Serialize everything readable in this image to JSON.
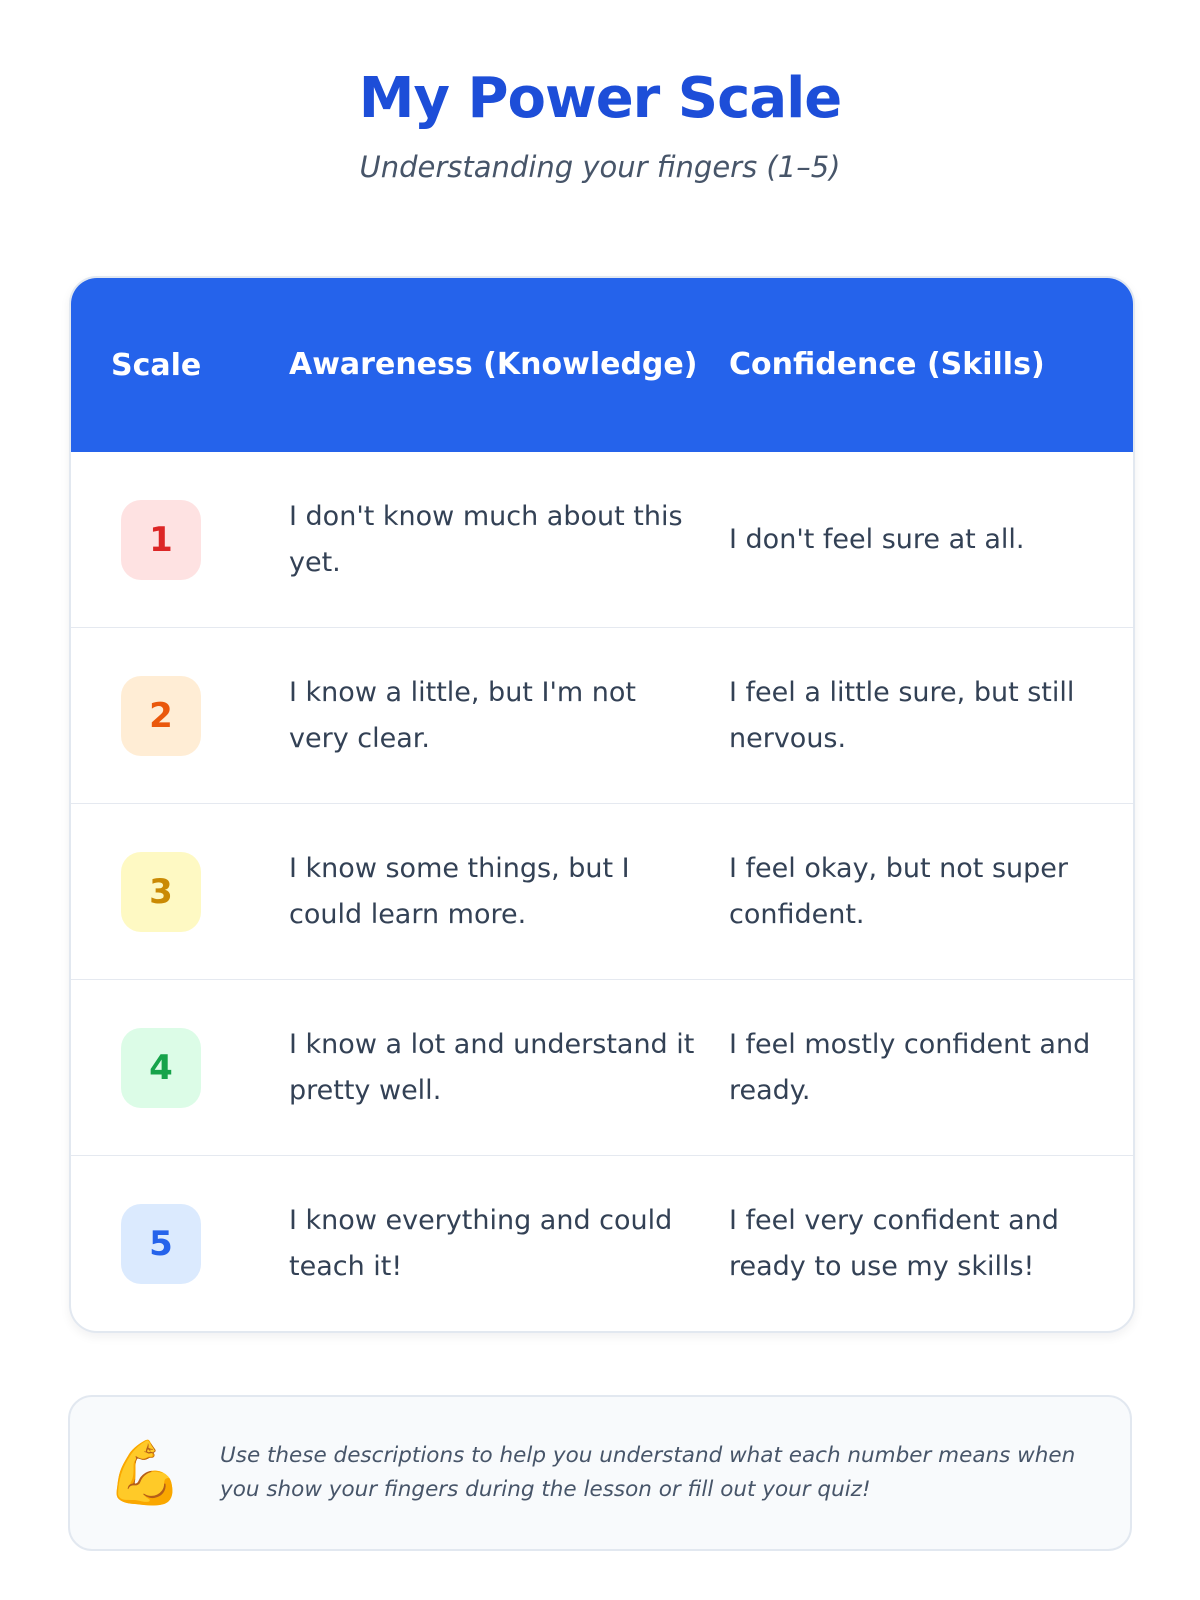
{
  "header": {
    "title": "My Power Scale",
    "subtitle": "Understanding your fingers (1–5)"
  },
  "table": {
    "columns": [
      "Scale",
      "Awareness (Knowledge)",
      "Confidence (Skills)"
    ],
    "header_color": "#2563eb",
    "rows": [
      {
        "scale": "1",
        "awareness": "I don't know much about this yet.",
        "confidence": "I don't feel sure at all.",
        "badge_bg": "#fee2e2",
        "badge_fg": "#dc2626"
      },
      {
        "scale": "2",
        "awareness": "I know a little, but I'm not very clear.",
        "confidence": "I feel a little sure, but still nervous.",
        "badge_bg": "#ffedd5",
        "badge_fg": "#ea580c"
      },
      {
        "scale": "3",
        "awareness": "I know some things, but I could learn more.",
        "confidence": "I feel okay, but not super confident.",
        "badge_bg": "#fef9c3",
        "badge_fg": "#ca8a04"
      },
      {
        "scale": "4",
        "awareness": "I know a lot and understand it pretty well.",
        "confidence": "I feel mostly confident and ready.",
        "badge_bg": "#dcfce7",
        "badge_fg": "#16a34a"
      },
      {
        "scale": "5",
        "awareness": "I know everything and could teach it!",
        "confidence": "I feel very confident and ready to use my skills!",
        "badge_bg": "#dbeafe",
        "badge_fg": "#2563eb"
      }
    ]
  },
  "note": {
    "icon": "flexed-biceps-icon",
    "emoji": "💪",
    "text": "Use these descriptions to help you understand what each number means when you show your fingers during the lesson or fill out your quiz!"
  }
}
